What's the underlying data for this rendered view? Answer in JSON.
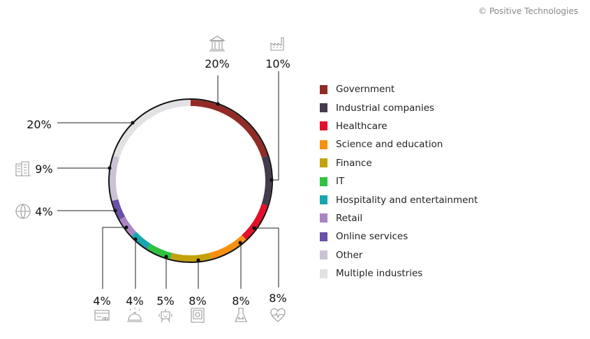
{
  "copyright": "© Positive Technologies",
  "chart_data": {
    "type": "pie",
    "variant": "donut",
    "unit": "%",
    "categories": [
      "Government",
      "Industrial companies",
      "Healthcare",
      "Science and education",
      "Finance",
      "IT",
      "Hospitality and entertainment",
      "Retail",
      "Online services",
      "Other",
      "Multiple industries"
    ],
    "values": [
      20,
      10,
      8,
      8,
      8,
      5,
      4,
      4,
      4,
      9,
      20
    ],
    "labels": [
      "20%",
      "10%",
      "8%",
      "8%",
      "8%",
      "5%",
      "4%",
      "4%",
      "4%",
      "9%",
      "20%"
    ],
    "colors": [
      "#922b26",
      "#463b4d",
      "#e2102a",
      "#f7900f",
      "#c3a20b",
      "#2fc23e",
      "#17a6ad",
      "#aa85c4",
      "#6a50a8",
      "#cbc2d6",
      "#e2e2e4"
    ],
    "icons": [
      "government-building-icon",
      "factory-icon",
      "heartbeat-icon",
      "scientist-icon",
      "safe-icon",
      "robot-icon",
      "reception-bell-icon",
      "credit-card-icon",
      "globe-icon",
      "office-buildings-icon",
      ""
    ],
    "legend_position": "right"
  }
}
